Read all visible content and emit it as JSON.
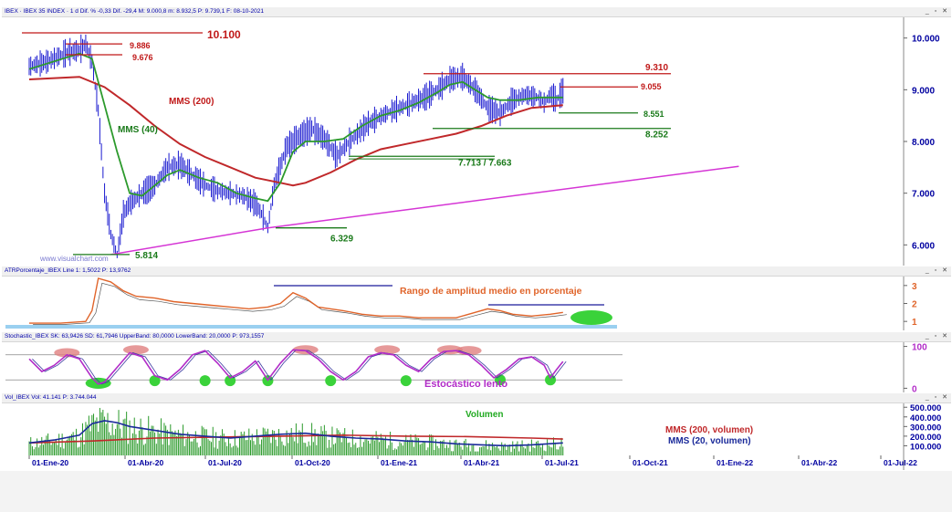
{
  "headers": {
    "main": "IBEX · IBEX 35 INDEX · 1 d  Dif. % -0,33  Dif. -29,4  M: 9.000,8  m: 8.932,5  P: 9.739,1  F: 08-10-2021",
    "atr": "ATRPorcentaje_IBEX  Line 1: 1,5022  P: 13,9762",
    "stoch": "Stochastic_IBEX  SK: 63,9426  SD: 61,7946  UpperBand: 80,0000  LowerBand: 20,0000  P: 973,1557",
    "vol": "Vol_IBEX  Vol: 41.141  P: 3.744.044"
  },
  "window_buttons": "_ ▫ ✕",
  "watermark": "www.visualchart.com",
  "annotations": {
    "level_10100": "10.100",
    "level_9886": "9.886",
    "level_9676": "9.676",
    "level_9310": "9.310",
    "level_9055": "9.055",
    "level_8551": "8.551",
    "level_8252": "8.252",
    "level_7713": "7.713 / 7.663",
    "level_6329": "6.329",
    "level_5814": "5.814",
    "mms200": "MMS (200)",
    "mms40": "MMS (40)",
    "atr_title": "Rango de amplitud medio en porcentaje",
    "stoch_title": "Estocástico lento",
    "vol_title": "Volumen",
    "vol_mms200": "MMS (200, volumen)",
    "vol_mms20": "MMS (20, volumen)"
  },
  "colors": {
    "candles": "#1a1ad0",
    "mms200": "#c0282a",
    "mms40": "#2c9a2c",
    "trend": "#d535d5",
    "levels_red": "#c01818",
    "levels_green": "#1a7a1a",
    "atr_line": "#e0642a",
    "stoch_line": "#b22cc8",
    "volume": "#2a9a2a",
    "vol_mms20": "#1a2a9a",
    "axis_text": "#0000a0",
    "vol_text": "#22aa22"
  },
  "chart_data": [
    {
      "type": "line",
      "title": "IBEX 35 INDEX",
      "x_ticks": [
        "01-Ene-20",
        "01-Abr-20",
        "01-Jul-20",
        "01-Oct-20",
        "01-Ene-21",
        "01-Abr-21",
        "01-Jul-21",
        "01-Oct-21",
        "01-Ene-22",
        "01-Abr-22",
        "01-Jul-22"
      ],
      "y_ticks": [
        "10.000",
        "9.000",
        "8.000",
        "7.000",
        "6.000"
      ],
      "ylim": [
        5600,
        10400
      ],
      "series": [
        {
          "name": "IBEX",
          "values": [
            [
              0,
              9450
            ],
            [
              3,
              9550
            ],
            [
              6,
              9720
            ],
            [
              8,
              9760
            ],
            [
              9,
              9886
            ],
            [
              10,
              9550
            ],
            [
              11,
              8600
            ],
            [
              12,
              7000
            ],
            [
              13,
              6200
            ],
            [
              14,
              5814
            ],
            [
              15,
              6600
            ],
            [
              16,
              6800
            ],
            [
              18,
              7000
            ],
            [
              20,
              7150
            ],
            [
              22,
              7500
            ],
            [
              24,
              7550
            ],
            [
              26,
              7350
            ],
            [
              28,
              7150
            ],
            [
              30,
              7050
            ],
            [
              32,
              7000
            ],
            [
              34,
              6950
            ],
            [
              36,
              6800
            ],
            [
              37,
              6600
            ],
            [
              38,
              6329
            ],
            [
              39,
              7150
            ],
            [
              41,
              7900
            ],
            [
              43,
              8100
            ],
            [
              45,
              8250
            ],
            [
              47,
              8050
            ],
            [
              49,
              7713
            ],
            [
              51,
              8000
            ],
            [
              54,
              8350
            ],
            [
              57,
              8550
            ],
            [
              60,
              8700
            ],
            [
              63,
              8850
            ],
            [
              65,
              9000
            ],
            [
              67,
              9200
            ],
            [
              69,
              9250
            ],
            [
              71,
              9000
            ],
            [
              73,
              8650
            ],
            [
              75,
              8551
            ],
            [
              77,
              8800
            ],
            [
              79,
              8900
            ],
            [
              81,
              8850
            ],
            [
              82,
              8750
            ],
            [
              83,
              8900
            ],
            [
              84,
              8800
            ],
            [
              85,
              8980
            ]
          ]
        },
        {
          "name": "MMS (200)",
          "values": [
            [
              0,
              9200
            ],
            [
              8,
              9250
            ],
            [
              12,
              9050
            ],
            [
              16,
              8700
            ],
            [
              20,
              8300
            ],
            [
              24,
              7950
            ],
            [
              28,
              7700
            ],
            [
              32,
              7500
            ],
            [
              36,
              7300
            ],
            [
              40,
              7200
            ],
            [
              42,
              7150
            ],
            [
              44,
              7200
            ],
            [
              48,
              7400
            ],
            [
              52,
              7650
            ],
            [
              56,
              7850
            ],
            [
              60,
              7950
            ],
            [
              64,
              8050
            ],
            [
              68,
              8150
            ],
            [
              72,
              8300
            ],
            [
              76,
              8500
            ],
            [
              80,
              8650
            ],
            [
              85,
              8700
            ]
          ]
        },
        {
          "name": "MMS (40)",
          "values": [
            [
              0,
              9400
            ],
            [
              8,
              9700
            ],
            [
              10,
              9600
            ],
            [
              12,
              8700
            ],
            [
              14,
              7800
            ],
            [
              16,
              7000
            ],
            [
              18,
              6950
            ],
            [
              20,
              7150
            ],
            [
              22,
              7350
            ],
            [
              24,
              7450
            ],
            [
              27,
              7300
            ],
            [
              30,
              7200
            ],
            [
              33,
              7000
            ],
            [
              36,
              6900
            ],
            [
              38,
              6850
            ],
            [
              40,
              7200
            ],
            [
              42,
              7800
            ],
            [
              44,
              8000
            ],
            [
              47,
              8000
            ],
            [
              50,
              8050
            ],
            [
              53,
              8300
            ],
            [
              56,
              8500
            ],
            [
              59,
              8600
            ],
            [
              62,
              8750
            ],
            [
              65,
              8950
            ],
            [
              67,
              9100
            ],
            [
              69,
              9150
            ],
            [
              71,
              9000
            ],
            [
              73,
              8850
            ],
            [
              75,
              8800
            ],
            [
              78,
              8800
            ],
            [
              81,
              8850
            ],
            [
              83,
              8850
            ],
            [
              85,
              8850
            ]
          ]
        },
        {
          "name": "tendencia",
          "values": [
            [
              13,
              5814
            ],
            [
              38,
              6329
            ],
            [
              113,
              7520
            ]
          ]
        }
      ]
    },
    {
      "type": "line",
      "title": "Rango de amplitud medio en porcentaje",
      "y_ticks": [
        "3",
        "2",
        "1"
      ],
      "ylim": [
        0.5,
        3.5
      ],
      "series": [
        {
          "name": "ATR %",
          "values": [
            [
              0,
              0.9
            ],
            [
              5,
              0.9
            ],
            [
              9,
              1.0
            ],
            [
              10,
              1.6
            ],
            [
              11,
              3.4
            ],
            [
              13,
              3.2
            ],
            [
              15,
              2.7
            ],
            [
              17,
              2.4
            ],
            [
              20,
              2.3
            ],
            [
              23,
              2.1
            ],
            [
              26,
              2.0
            ],
            [
              29,
              1.9
            ],
            [
              32,
              1.8
            ],
            [
              35,
              1.7
            ],
            [
              38,
              1.8
            ],
            [
              40,
              2.0
            ],
            [
              42,
              2.6
            ],
            [
              44,
              2.3
            ],
            [
              46,
              1.8
            ],
            [
              48,
              1.7
            ],
            [
              50,
              1.6
            ],
            [
              53,
              1.4
            ],
            [
              56,
              1.3
            ],
            [
              59,
              1.3
            ],
            [
              62,
              1.2
            ],
            [
              65,
              1.2
            ],
            [
              68,
              1.2
            ],
            [
              71,
              1.5
            ],
            [
              73,
              1.7
            ],
            [
              75,
              1.6
            ],
            [
              77,
              1.4
            ],
            [
              80,
              1.3
            ],
            [
              83,
              1.4
            ],
            [
              85,
              1.5
            ]
          ]
        }
      ]
    },
    {
      "type": "line",
      "title": "Estocástico lento",
      "y_ticks": [
        "100",
        "0"
      ],
      "ylim": [
        -10,
        110
      ],
      "bands": [
        80,
        20
      ],
      "series": [
        {
          "name": "SK",
          "values": [
            [
              0,
              70
            ],
            [
              2,
              40
            ],
            [
              4,
              55
            ],
            [
              6,
              80
            ],
            [
              8,
              70
            ],
            [
              10,
              25
            ],
            [
              11,
              10
            ],
            [
              12,
              15
            ],
            [
              14,
              50
            ],
            [
              16,
              85
            ],
            [
              18,
              75
            ],
            [
              20,
              30
            ],
            [
              22,
              20
            ],
            [
              24,
              45
            ],
            [
              26,
              80
            ],
            [
              28,
              90
            ],
            [
              30,
              60
            ],
            [
              32,
              25
            ],
            [
              34,
              40
            ],
            [
              36,
              65
            ],
            [
              38,
              20
            ],
            [
              40,
              60
            ],
            [
              42,
              92
            ],
            [
              44,
              90
            ],
            [
              46,
              70
            ],
            [
              48,
              40
            ],
            [
              50,
              20
            ],
            [
              52,
              40
            ],
            [
              54,
              75
            ],
            [
              56,
              85
            ],
            [
              58,
              80
            ],
            [
              60,
              55
            ],
            [
              62,
              40
            ],
            [
              64,
              70
            ],
            [
              66,
              88
            ],
            [
              68,
              90
            ],
            [
              70,
              80
            ],
            [
              72,
              55
            ],
            [
              74,
              25
            ],
            [
              76,
              45
            ],
            [
              78,
              70
            ],
            [
              80,
              75
            ],
            [
              82,
              55
            ],
            [
              83,
              25
            ],
            [
              84,
              45
            ],
            [
              85,
              64
            ]
          ]
        }
      ]
    },
    {
      "type": "bar",
      "title": "Volumen",
      "y_ticks": [
        "500.000",
        "400.000",
        "300.000",
        "200.000",
        "100.000"
      ],
      "ylim": [
        0,
        540000
      ],
      "series": [
        {
          "name": "MMS (200, volumen)",
          "values": [
            [
              0,
              130000
            ],
            [
              10,
              150000
            ],
            [
              20,
              180000
            ],
            [
              30,
              190000
            ],
            [
              40,
              200000
            ],
            [
              50,
              210000
            ],
            [
              60,
              200000
            ],
            [
              70,
              195000
            ],
            [
              80,
              180000
            ],
            [
              85,
              170000
            ]
          ]
        },
        {
          "name": "MMS (20, volumen)",
          "values": [
            [
              0,
              130000
            ],
            [
              4,
              160000
            ],
            [
              8,
              210000
            ],
            [
              10,
              330000
            ],
            [
              12,
              360000
            ],
            [
              14,
              340000
            ],
            [
              16,
              300000
            ],
            [
              18,
              280000
            ],
            [
              20,
              260000
            ],
            [
              24,
              220000
            ],
            [
              28,
              200000
            ],
            [
              32,
              180000
            ],
            [
              36,
              200000
            ],
            [
              40,
              220000
            ],
            [
              44,
              230000
            ],
            [
              48,
              200000
            ],
            [
              52,
              180000
            ],
            [
              56,
              170000
            ],
            [
              60,
              150000
            ],
            [
              64,
              140000
            ],
            [
              68,
              120000
            ],
            [
              72,
              110000
            ],
            [
              76,
              100000
            ],
            [
              80,
              110000
            ],
            [
              85,
              130000
            ]
          ]
        }
      ]
    }
  ]
}
